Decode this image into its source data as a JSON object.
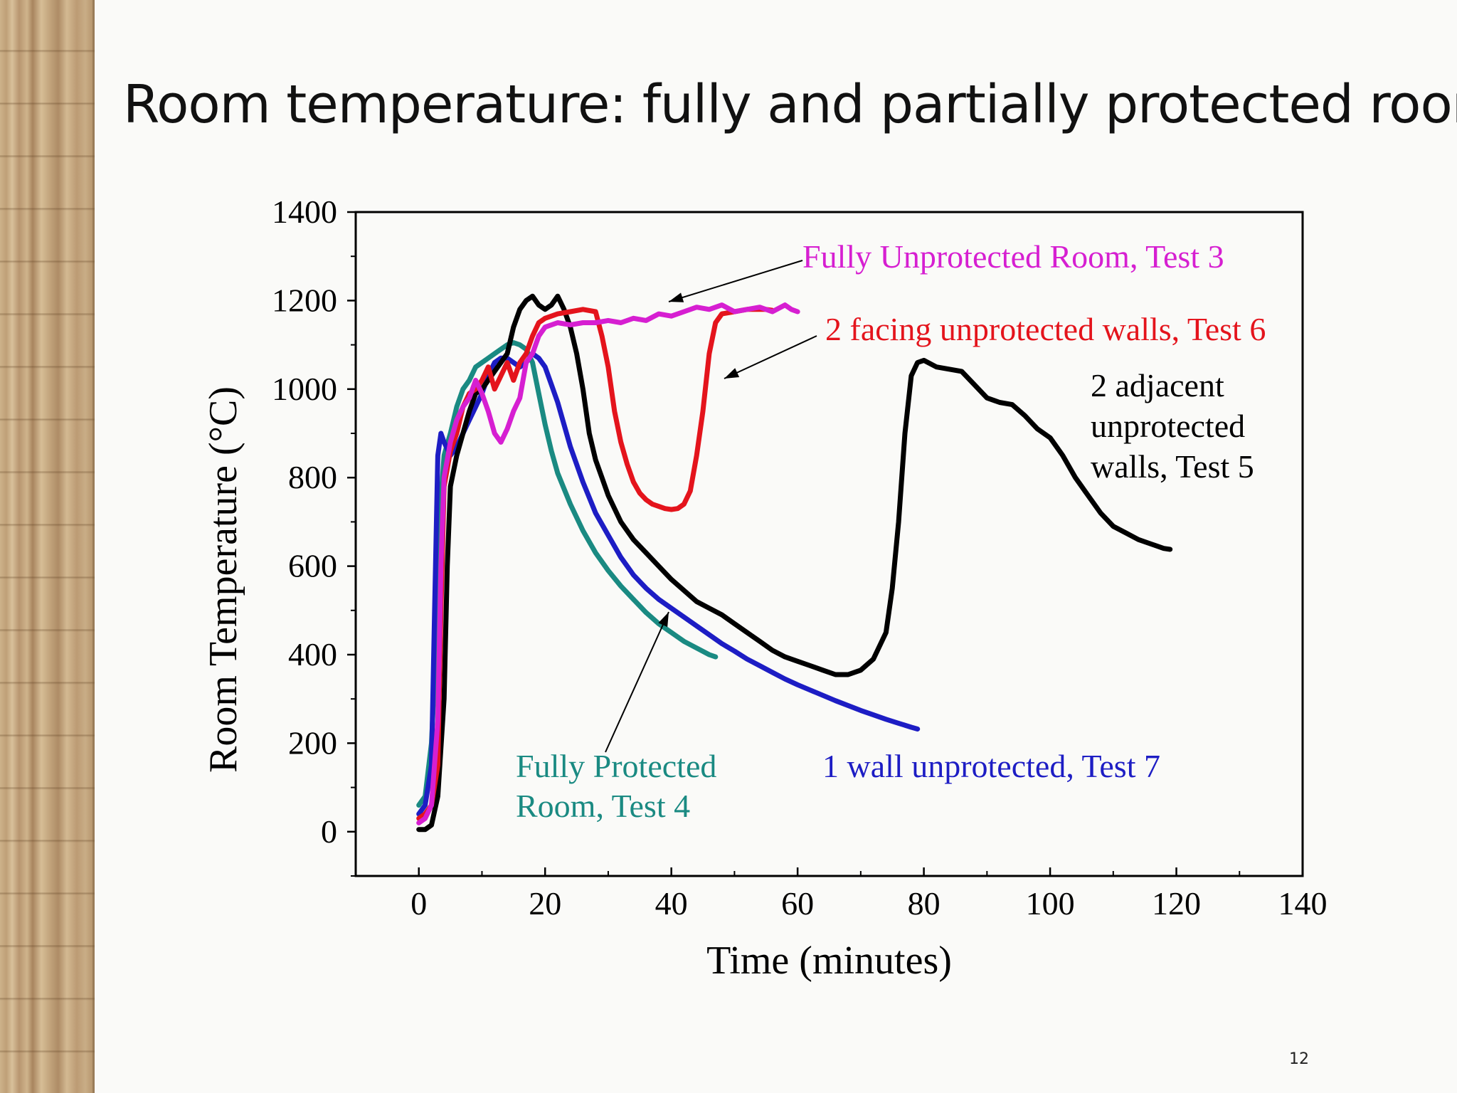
{
  "title": "Room temperature: fully and partially protected room",
  "page_number": "12",
  "chart_data": {
    "type": "line",
    "xlabel": "Time (minutes)",
    "ylabel": "Room Temperature (°C)",
    "xlim": [
      -10,
      140
    ],
    "ylim": [
      -100,
      1400
    ],
    "xticks": [
      "0",
      "20",
      "40",
      "60",
      "80",
      "100",
      "120",
      "140"
    ],
    "yticks": [
      "0",
      "200",
      "400",
      "600",
      "800",
      "1000",
      "1200",
      "1400"
    ],
    "grid": false,
    "series": [
      {
        "label": "Fully Unprotected Room, Test 3",
        "label_lines": [
          "Fully Unprotected Room, Test 3"
        ],
        "color": "#d61fd1",
        "points": [
          [
            0,
            20
          ],
          [
            1,
            30
          ],
          [
            2,
            60
          ],
          [
            3,
            250
          ],
          [
            3.5,
            600
          ],
          [
            4,
            800
          ],
          [
            5,
            880
          ],
          [
            6,
            930
          ],
          [
            7,
            960
          ],
          [
            8,
            980
          ],
          [
            9,
            1020
          ],
          [
            10,
            990
          ],
          [
            11,
            950
          ],
          [
            12,
            900
          ],
          [
            13,
            880
          ],
          [
            14,
            910
          ],
          [
            15,
            950
          ],
          [
            16,
            980
          ],
          [
            17,
            1060
          ],
          [
            18,
            1080
          ],
          [
            19,
            1120
          ],
          [
            20,
            1140
          ],
          [
            22,
            1150
          ],
          [
            24,
            1145
          ],
          [
            26,
            1150
          ],
          [
            28,
            1150
          ],
          [
            30,
            1155
          ],
          [
            32,
            1150
          ],
          [
            34,
            1160
          ],
          [
            36,
            1155
          ],
          [
            38,
            1170
          ],
          [
            40,
            1165
          ],
          [
            42,
            1175
          ],
          [
            44,
            1185
          ],
          [
            46,
            1180
          ],
          [
            48,
            1190
          ],
          [
            50,
            1175
          ],
          [
            52,
            1180
          ],
          [
            54,
            1185
          ],
          [
            56,
            1175
          ],
          [
            58,
            1190
          ],
          [
            59,
            1180
          ],
          [
            60,
            1175
          ]
        ]
      },
      {
        "label": "2 facing unprotected walls, Test 6",
        "label_lines": [
          "2 facing unprotected walls, Test 6"
        ],
        "color": "#e4141c",
        "points": [
          [
            0,
            30
          ],
          [
            1,
            40
          ],
          [
            2,
            60
          ],
          [
            3,
            150
          ],
          [
            3.5,
            500
          ],
          [
            4,
            780
          ],
          [
            5,
            860
          ],
          [
            6,
            900
          ],
          [
            7,
            960
          ],
          [
            8,
            990
          ],
          [
            9,
            1000
          ],
          [
            10,
            1020
          ],
          [
            11,
            1050
          ],
          [
            12,
            1000
          ],
          [
            13,
            1030
          ],
          [
            14,
            1060
          ],
          [
            15,
            1020
          ],
          [
            16,
            1060
          ],
          [
            17,
            1080
          ],
          [
            18,
            1120
          ],
          [
            19,
            1150
          ],
          [
            20,
            1160
          ],
          [
            22,
            1170
          ],
          [
            24,
            1175
          ],
          [
            26,
            1180
          ],
          [
            28,
            1175
          ],
          [
            29,
            1120
          ],
          [
            30,
            1050
          ],
          [
            31,
            950
          ],
          [
            32,
            880
          ],
          [
            33,
            830
          ],
          [
            34,
            790
          ],
          [
            35,
            765
          ],
          [
            36,
            750
          ],
          [
            37,
            740
          ],
          [
            38,
            735
          ],
          [
            39,
            730
          ],
          [
            40,
            728
          ],
          [
            41,
            730
          ],
          [
            42,
            740
          ],
          [
            43,
            770
          ],
          [
            44,
            850
          ],
          [
            45,
            950
          ],
          [
            46,
            1080
          ],
          [
            47,
            1150
          ],
          [
            48,
            1170
          ],
          [
            50,
            1175
          ],
          [
            52,
            1180
          ],
          [
            55,
            1180
          ],
          [
            56,
            1178
          ]
        ]
      },
      {
        "label": "2 adjacent unprotected walls, Test 5",
        "label_lines": [
          "2 adjacent",
          "unprotected",
          "walls, Test 5"
        ],
        "color": "#000000",
        "points": [
          [
            0,
            5
          ],
          [
            1,
            5
          ],
          [
            2,
            15
          ],
          [
            3,
            80
          ],
          [
            4,
            300
          ],
          [
            4.5,
            600
          ],
          [
            5,
            780
          ],
          [
            6,
            850
          ],
          [
            7,
            900
          ],
          [
            8,
            950
          ],
          [
            9,
            990
          ],
          [
            10,
            1000
          ],
          [
            11,
            1020
          ],
          [
            12,
            1040
          ],
          [
            13,
            1060
          ],
          [
            14,
            1080
          ],
          [
            15,
            1140
          ],
          [
            16,
            1180
          ],
          [
            17,
            1200
          ],
          [
            18,
            1210
          ],
          [
            19,
            1190
          ],
          [
            20,
            1180
          ],
          [
            21,
            1190
          ],
          [
            22,
            1210
          ],
          [
            23,
            1180
          ],
          [
            24,
            1140
          ],
          [
            25,
            1080
          ],
          [
            26,
            1000
          ],
          [
            27,
            900
          ],
          [
            28,
            840
          ],
          [
            29,
            800
          ],
          [
            30,
            760
          ],
          [
            31,
            730
          ],
          [
            32,
            700
          ],
          [
            34,
            660
          ],
          [
            36,
            630
          ],
          [
            38,
            600
          ],
          [
            40,
            570
          ],
          [
            42,
            545
          ],
          [
            44,
            520
          ],
          [
            46,
            505
          ],
          [
            48,
            490
          ],
          [
            50,
            470
          ],
          [
            52,
            450
          ],
          [
            54,
            430
          ],
          [
            56,
            410
          ],
          [
            58,
            395
          ],
          [
            60,
            385
          ],
          [
            62,
            375
          ],
          [
            64,
            365
          ],
          [
            66,
            355
          ],
          [
            68,
            355
          ],
          [
            70,
            365
          ],
          [
            72,
            390
          ],
          [
            74,
            450
          ],
          [
            75,
            550
          ],
          [
            76,
            700
          ],
          [
            77,
            900
          ],
          [
            78,
            1030
          ],
          [
            79,
            1060
          ],
          [
            80,
            1065
          ],
          [
            82,
            1050
          ],
          [
            84,
            1045
          ],
          [
            86,
            1040
          ],
          [
            88,
            1010
          ],
          [
            90,
            980
          ],
          [
            92,
            970
          ],
          [
            94,
            965
          ],
          [
            96,
            940
          ],
          [
            98,
            910
          ],
          [
            100,
            890
          ],
          [
            102,
            850
          ],
          [
            104,
            800
          ],
          [
            106,
            760
          ],
          [
            108,
            720
          ],
          [
            110,
            690
          ],
          [
            112,
            675
          ],
          [
            114,
            660
          ],
          [
            116,
            650
          ],
          [
            118,
            640
          ],
          [
            119,
            638
          ]
        ]
      },
      {
        "label": "Fully Protected Room, Test 4",
        "label_lines": [
          "Fully Protected",
          "Room, Test 4"
        ],
        "color": "#1a8a82",
        "points": [
          [
            0,
            60
          ],
          [
            1,
            80
          ],
          [
            2,
            200
          ],
          [
            3,
            500
          ],
          [
            3.5,
            750
          ],
          [
            4,
            850
          ],
          [
            5,
            900
          ],
          [
            6,
            960
          ],
          [
            7,
            1000
          ],
          [
            8,
            1020
          ],
          [
            9,
            1050
          ],
          [
            10,
            1060
          ],
          [
            11,
            1070
          ],
          [
            12,
            1080
          ],
          [
            13,
            1090
          ],
          [
            14,
            1100
          ],
          [
            15,
            1105
          ],
          [
            16,
            1100
          ],
          [
            17,
            1090
          ],
          [
            18,
            1060
          ],
          [
            19,
            990
          ],
          [
            20,
            920
          ],
          [
            21,
            860
          ],
          [
            22,
            810
          ],
          [
            24,
            740
          ],
          [
            26,
            680
          ],
          [
            28,
            630
          ],
          [
            30,
            590
          ],
          [
            32,
            555
          ],
          [
            34,
            525
          ],
          [
            36,
            495
          ],
          [
            38,
            470
          ],
          [
            40,
            450
          ],
          [
            42,
            430
          ],
          [
            44,
            415
          ],
          [
            46,
            400
          ],
          [
            47,
            395
          ]
        ]
      },
      {
        "label": "1 wall unprotected, Test 7",
        "label_lines": [
          "1 wall unprotected, Test 7"
        ],
        "color": "#1d1dc4",
        "points": [
          [
            0,
            40
          ],
          [
            1,
            60
          ],
          [
            2,
            150
          ],
          [
            2.5,
            500
          ],
          [
            3,
            850
          ],
          [
            3.5,
            900
          ],
          [
            4,
            880
          ],
          [
            5,
            850
          ],
          [
            6,
            870
          ],
          [
            7,
            900
          ],
          [
            8,
            930
          ],
          [
            9,
            960
          ],
          [
            10,
            990
          ],
          [
            11,
            1030
          ],
          [
            12,
            1060
          ],
          [
            13,
            1070
          ],
          [
            14,
            1070
          ],
          [
            15,
            1060
          ],
          [
            16,
            1050
          ],
          [
            17,
            1060
          ],
          [
            18,
            1080
          ],
          [
            19,
            1070
          ],
          [
            20,
            1050
          ],
          [
            21,
            1010
          ],
          [
            22,
            970
          ],
          [
            23,
            920
          ],
          [
            24,
            870
          ],
          [
            26,
            790
          ],
          [
            28,
            720
          ],
          [
            30,
            670
          ],
          [
            32,
            620
          ],
          [
            34,
            580
          ],
          [
            36,
            550
          ],
          [
            38,
            525
          ],
          [
            40,
            505
          ],
          [
            42,
            485
          ],
          [
            44,
            465
          ],
          [
            46,
            445
          ],
          [
            48,
            425
          ],
          [
            50,
            408
          ],
          [
            52,
            390
          ],
          [
            54,
            375
          ],
          [
            56,
            360
          ],
          [
            58,
            345
          ],
          [
            60,
            332
          ],
          [
            62,
            320
          ],
          [
            64,
            308
          ],
          [
            66,
            296
          ],
          [
            68,
            285
          ],
          [
            70,
            274
          ],
          [
            72,
            264
          ],
          [
            74,
            254
          ],
          [
            76,
            245
          ],
          [
            78,
            236
          ],
          [
            79,
            232
          ]
        ]
      }
    ]
  }
}
